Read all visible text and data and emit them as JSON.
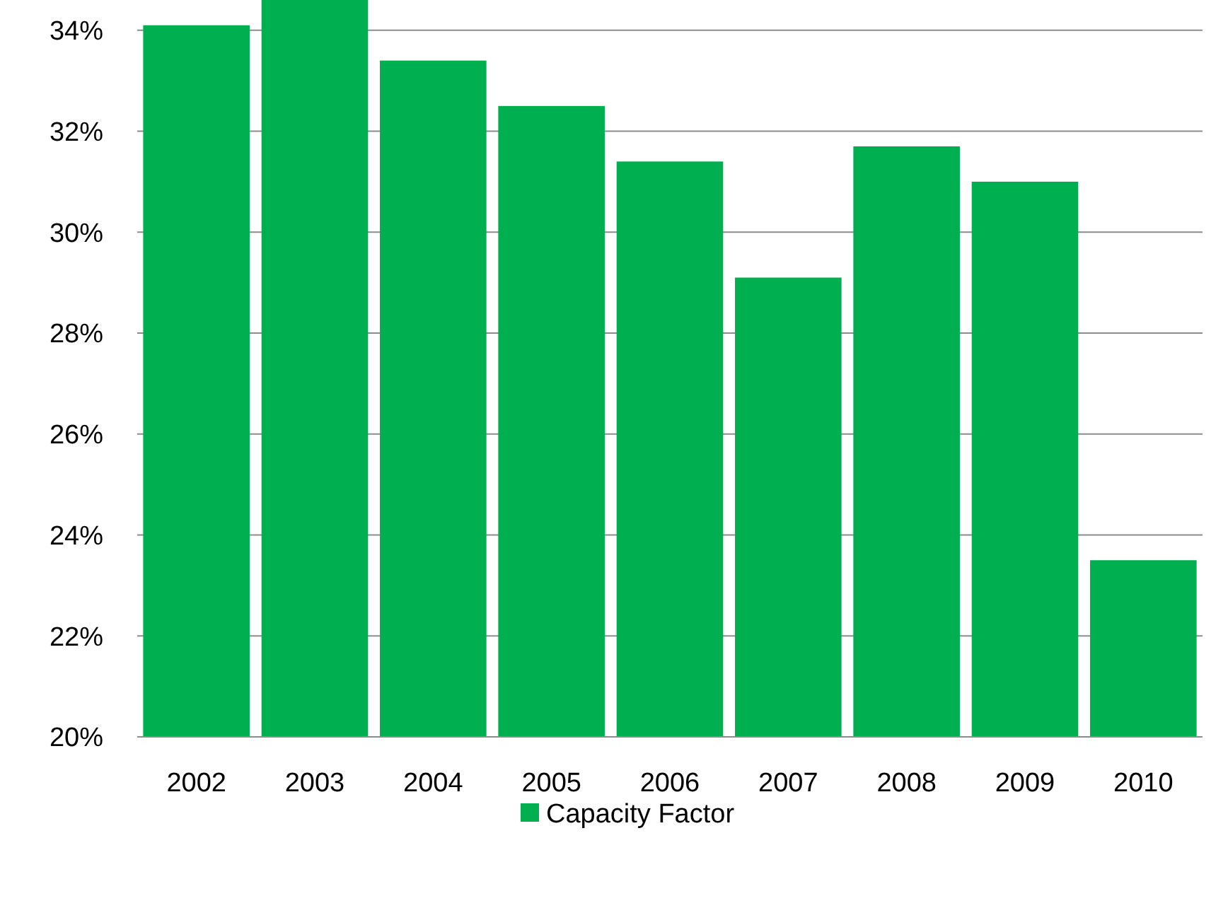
{
  "chart_data": {
    "type": "bar",
    "categories": [
      "2002",
      "2003",
      "2004",
      "2005",
      "2006",
      "2007",
      "2008",
      "2009",
      "2010"
    ],
    "series": [
      {
        "name": "Capacity Factor",
        "color": "#00b050",
        "values": [
          34.1,
          34.6,
          33.4,
          32.5,
          31.4,
          29.1,
          31.7,
          31.0,
          23.5
        ]
      }
    ],
    "ylim": [
      20,
      34.6
    ],
    "yticks": [
      {
        "value": 20,
        "label": "20%"
      },
      {
        "value": 22,
        "label": "22%"
      },
      {
        "value": 24,
        "label": "24%"
      },
      {
        "value": 26,
        "label": "26%"
      },
      {
        "value": 28,
        "label": "28%"
      },
      {
        "value": 30,
        "label": "30%"
      },
      {
        "value": 32,
        "label": "32%"
      },
      {
        "value": 34,
        "label": "34%"
      }
    ],
    "grid": "y",
    "legend": "bottom"
  }
}
